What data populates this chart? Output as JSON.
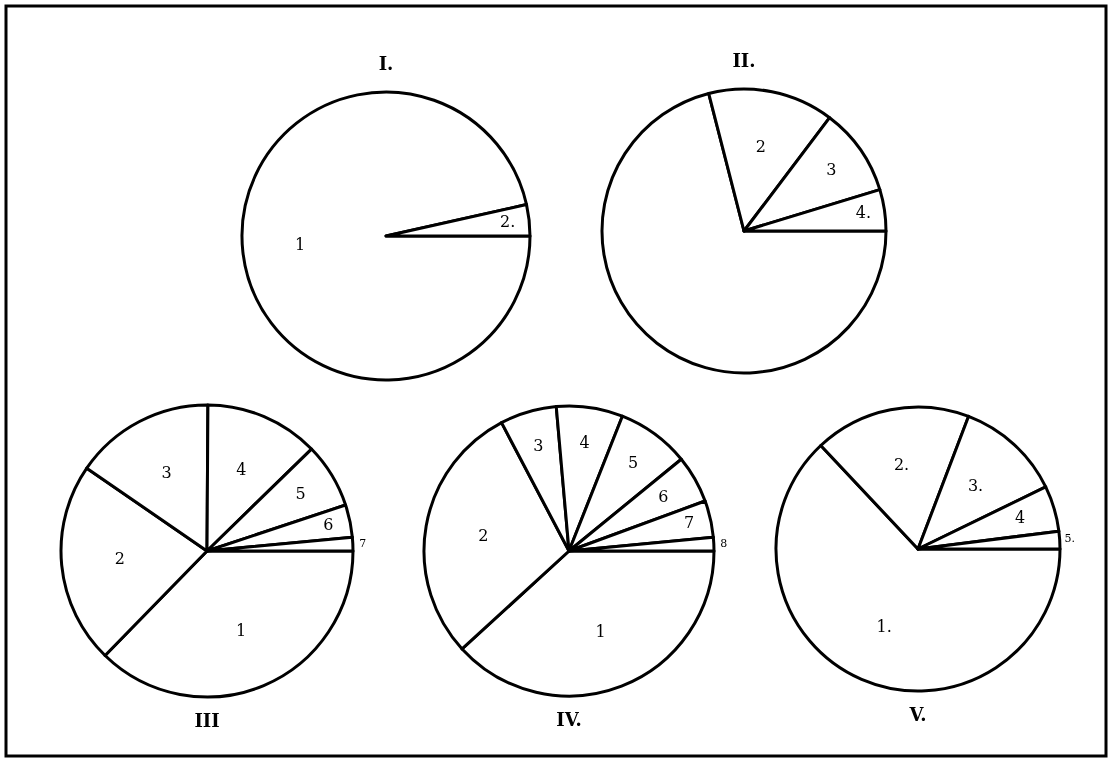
{
  "chart_data": [
    {
      "type": "pie",
      "title": "I.",
      "categories": [
        "1",
        "2."
      ],
      "values": [
        96.5,
        3.5
      ],
      "colors": [
        "#ffffff",
        "#ffffff"
      ]
    },
    {
      "type": "pie",
      "title": "II.",
      "categories": [
        null,
        "2",
        "3",
        "4."
      ],
      "values": [
        71,
        14.3,
        10,
        4.7
      ],
      "colors": [
        "#ffffff",
        "#ffffff",
        "#ffffff",
        "#ffffff"
      ]
    },
    {
      "type": "pie",
      "title": "III",
      "categories": [
        "1",
        "2",
        "3",
        "4",
        "5",
        "6",
        "7"
      ],
      "values": [
        37.3,
        22.3,
        15.5,
        12.6,
        7.2,
        3.6,
        1.5
      ],
      "colors": [
        "#ffffff",
        "#ffffff",
        "#ffffff",
        "#ffffff",
        "#ffffff",
        "#ffffff",
        "#ffffff"
      ]
    },
    {
      "type": "pie",
      "title": "IV.",
      "categories": [
        "1",
        "2",
        "3",
        "4",
        "5",
        "6",
        "7",
        "8"
      ],
      "values": [
        38.2,
        29.1,
        6.3,
        7.4,
        8.1,
        5.3,
        4.1,
        1.5
      ],
      "colors": [
        "#ffffff",
        "#ffffff",
        "#ffffff",
        "#ffffff",
        "#ffffff",
        "#ffffff",
        "#ffffff",
        "#ffffff"
      ]
    },
    {
      "type": "pie",
      "title": "V.",
      "categories": [
        "1.",
        "2.",
        "3.",
        "4",
        "5."
      ],
      "values": [
        63,
        17.8,
        12,
        5.2,
        2
      ],
      "colors": [
        "#ffffff",
        "#ffffff",
        "#ffffff",
        "#ffffff",
        "#ffffff"
      ]
    }
  ]
}
